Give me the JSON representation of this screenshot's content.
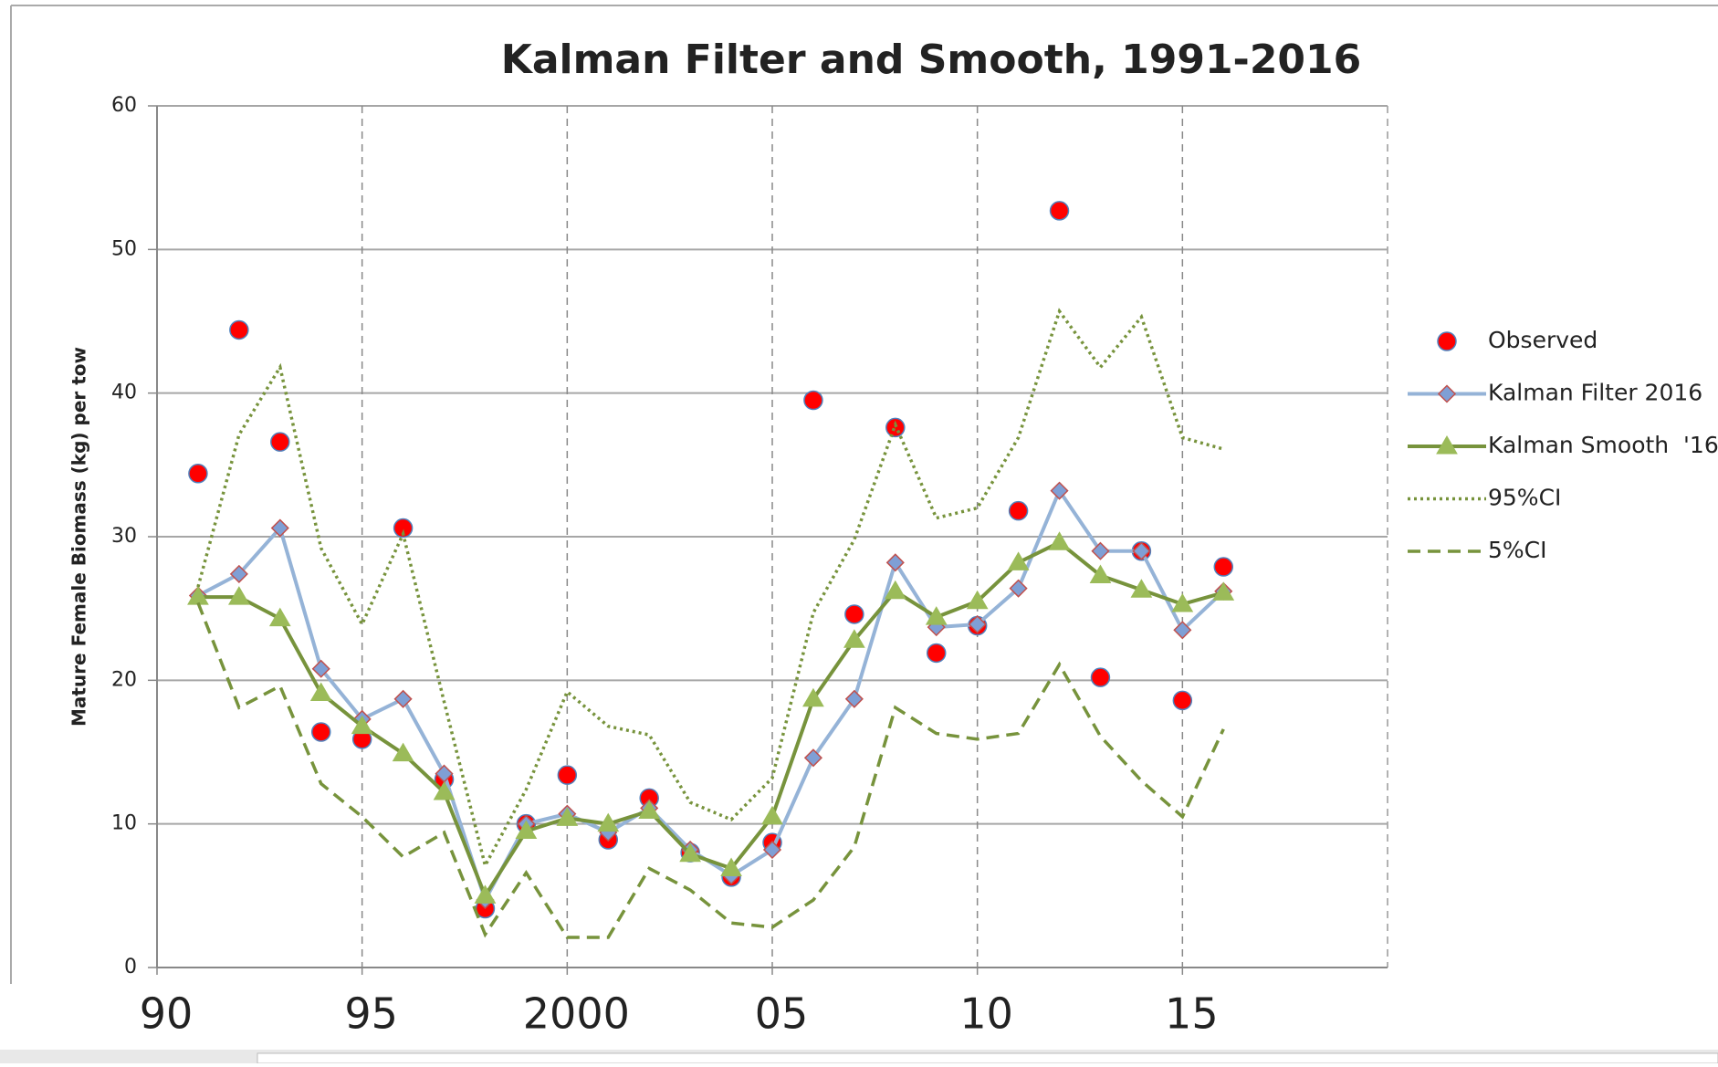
{
  "chart_data": {
    "type": "line",
    "title": "Kalman Filter and Smooth, 1991-2016",
    "y_label": "Mature Female Biomass (kg) per tow",
    "x": [
      1991,
      1992,
      1993,
      1994,
      1995,
      1996,
      1997,
      1998,
      1999,
      2000,
      2001,
      2002,
      2003,
      2004,
      2005,
      2006,
      2007,
      2008,
      2009,
      2010,
      2011,
      2012,
      2013,
      2014,
      2015,
      2016
    ],
    "xlim": [
      1990,
      2020
    ],
    "xticks": [
      {
        "value": 1990,
        "label": "90"
      },
      {
        "value": 1995,
        "label": "95"
      },
      2000,
      {
        "value": 2005,
        "label": "05"
      },
      {
        "value": 2010,
        "label": "10"
      },
      {
        "value": 2015,
        "label": "15"
      }
    ],
    "ylim": [
      0,
      60
    ],
    "yticks": [
      0,
      10,
      20,
      30,
      40,
      50,
      60
    ],
    "grid": true,
    "legend": "right",
    "series": [
      {
        "name": "Observed",
        "color": "#ff0000",
        "line": "none",
        "marker": "circle",
        "values": [
          34.4,
          44.4,
          36.6,
          16.4,
          15.9,
          30.6,
          13.1,
          4.1,
          10.0,
          13.4,
          8.9,
          11.8,
          8.0,
          6.3,
          8.7,
          39.5,
          24.6,
          37.6,
          21.9,
          23.8,
          31.8,
          52.7,
          20.2,
          29.0,
          18.6,
          27.9
        ]
      },
      {
        "name": "Kalman Filter 2016",
        "color": "#95b3d7",
        "line": "solid",
        "marker": "diamond",
        "values": [
          25.9,
          27.4,
          30.6,
          20.8,
          17.3,
          18.7,
          13.5,
          4.7,
          10.0,
          10.7,
          9.4,
          11.1,
          8.2,
          6.4,
          8.2,
          14.6,
          18.7,
          28.2,
          23.7,
          23.9,
          26.4,
          33.2,
          29.0,
          29.0,
          23.5,
          26.2
        ]
      },
      {
        "name": "Kalman Smooth  '16",
        "color": "#77933c",
        "line": "solid",
        "marker": "triangle",
        "values": [
          25.8,
          25.8,
          24.3,
          19.1,
          16.8,
          14.9,
          12.2,
          5.0,
          9.5,
          10.4,
          10.0,
          10.9,
          7.9,
          6.9,
          10.5,
          18.7,
          22.8,
          26.2,
          24.4,
          25.5,
          28.2,
          29.6,
          27.3,
          26.3,
          25.3,
          26.1
        ]
      },
      {
        "name": "95%CI",
        "color": "#77933c",
        "line": "dotted",
        "marker": "none",
        "values": [
          26.5,
          37.1,
          41.8,
          29.2,
          23.9,
          30.2,
          18.5,
          7.1,
          12.4,
          19.2,
          16.8,
          16.2,
          11.5,
          10.3,
          13.2,
          24.7,
          29.8,
          37.8,
          31.3,
          32.0,
          36.9,
          45.7,
          41.8,
          45.3,
          36.9,
          36.1
        ]
      },
      {
        "name": "5%CI",
        "color": "#77933c",
        "line": "dashed",
        "marker": "none",
        "values": [
          25.4,
          18.1,
          19.6,
          12.8,
          10.5,
          7.7,
          9.4,
          2.3,
          6.6,
          2.1,
          2.1,
          6.9,
          5.4,
          3.1,
          2.8,
          4.7,
          8.4,
          18.1,
          16.3,
          15.9,
          16.3,
          21.1,
          16.1,
          13.0,
          10.5,
          16.6
        ]
      }
    ]
  }
}
